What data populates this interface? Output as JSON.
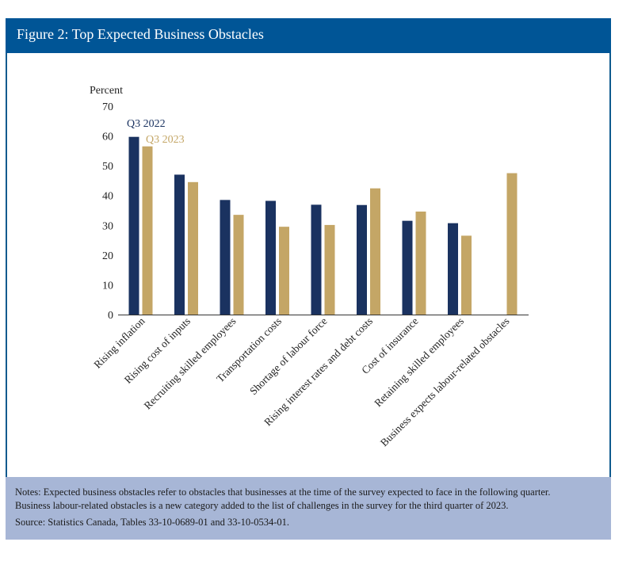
{
  "header": {
    "title": "Figure 2: Top Expected Business Obstacles"
  },
  "notes": {
    "line1": "Notes: Expected business obstacles refer to obstacles that businesses at the time of the survey expected to face in the following quarter.",
    "line2": "Business labour-related obstacles is a new category added to the list of challenges in the survey for the third quarter of 2023.",
    "source": "Source: Statistics Canada, Tables 33-10-0689-01 and 33-10-0534-01."
  },
  "colors": {
    "header": "#005596",
    "series1": "#1a3260",
    "series2": "#c4a666",
    "notes_bg": "#a7b6d6"
  },
  "chart_data": {
    "type": "bar",
    "ylabel": "Percent",
    "ylim": [
      0,
      70
    ],
    "yticks": [
      0,
      10,
      20,
      30,
      40,
      50,
      60,
      70
    ],
    "grid": false,
    "categories": [
      "Rising inflation",
      "Rising cost of inputs",
      "Recruiting skilled employees",
      "Transportation costs",
      "Shortage of labour force",
      "Rising interest rates and debt costs",
      "Cost of insurance",
      "Retaining skilled employees",
      "Business expects labour-related obstacles"
    ],
    "series": [
      {
        "name": "Q3 2022",
        "color": "#1a3260",
        "values": [
          59.7,
          47.0,
          38.5,
          38.2,
          36.9,
          36.8,
          31.5,
          30.7,
          null
        ]
      },
      {
        "name": "Q3 2023",
        "color": "#c4a666",
        "values": [
          56.5,
          44.5,
          33.5,
          29.5,
          30.1,
          42.4,
          34.6,
          26.5,
          47.5
        ]
      }
    ]
  }
}
